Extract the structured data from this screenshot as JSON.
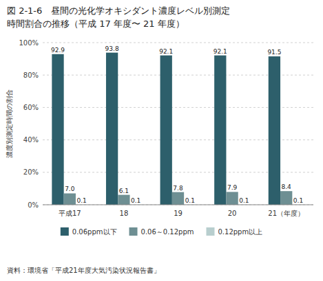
{
  "chart_data": {
    "type": "bar",
    "title": "図 2-1-6　昼間の光化学オキシダント濃度レベル別測定",
    "subtitle": "時間割合の推移（平成 17 年度〜 21 年度）",
    "ylabel": "濃度別測定時間の割合",
    "annotations": [
      "資料：環境省「平成21年度大気汚染状況報告書」"
    ],
    "categories": [
      "平成17",
      "18",
      "19",
      "20",
      "21（年度）"
    ],
    "series": [
      {
        "name": "0.06ppm以下",
        "color": "#2d5f6b",
        "values": [
          92.9,
          93.8,
          92.1,
          92.1,
          91.5
        ]
      },
      {
        "name": "0.06～0.12ppm",
        "color": "#6e8f93",
        "values": [
          7.0,
          6.1,
          7.8,
          7.9,
          8.4
        ],
        "value_labels": [
          "7.0",
          "6.1",
          "7.8",
          "7.9",
          "8.4"
        ]
      },
      {
        "name": "0.12ppm以上",
        "color": "#b8cece",
        "values": [
          0.1,
          0.1,
          0.1,
          0.1,
          0.1
        ]
      }
    ],
    "ylim": [
      0,
      100
    ],
    "yticks": [
      {
        "value": 0,
        "label": "0%"
      },
      {
        "value": 20,
        "label": "20%"
      },
      {
        "value": 40,
        "label": "40%"
      },
      {
        "value": 60,
        "label": "60%"
      },
      {
        "value": 80,
        "label": "80%"
      },
      {
        "value": 100,
        "label": "100%"
      }
    ],
    "grid": true,
    "legend": "bottom",
    "data_labels": true
  }
}
